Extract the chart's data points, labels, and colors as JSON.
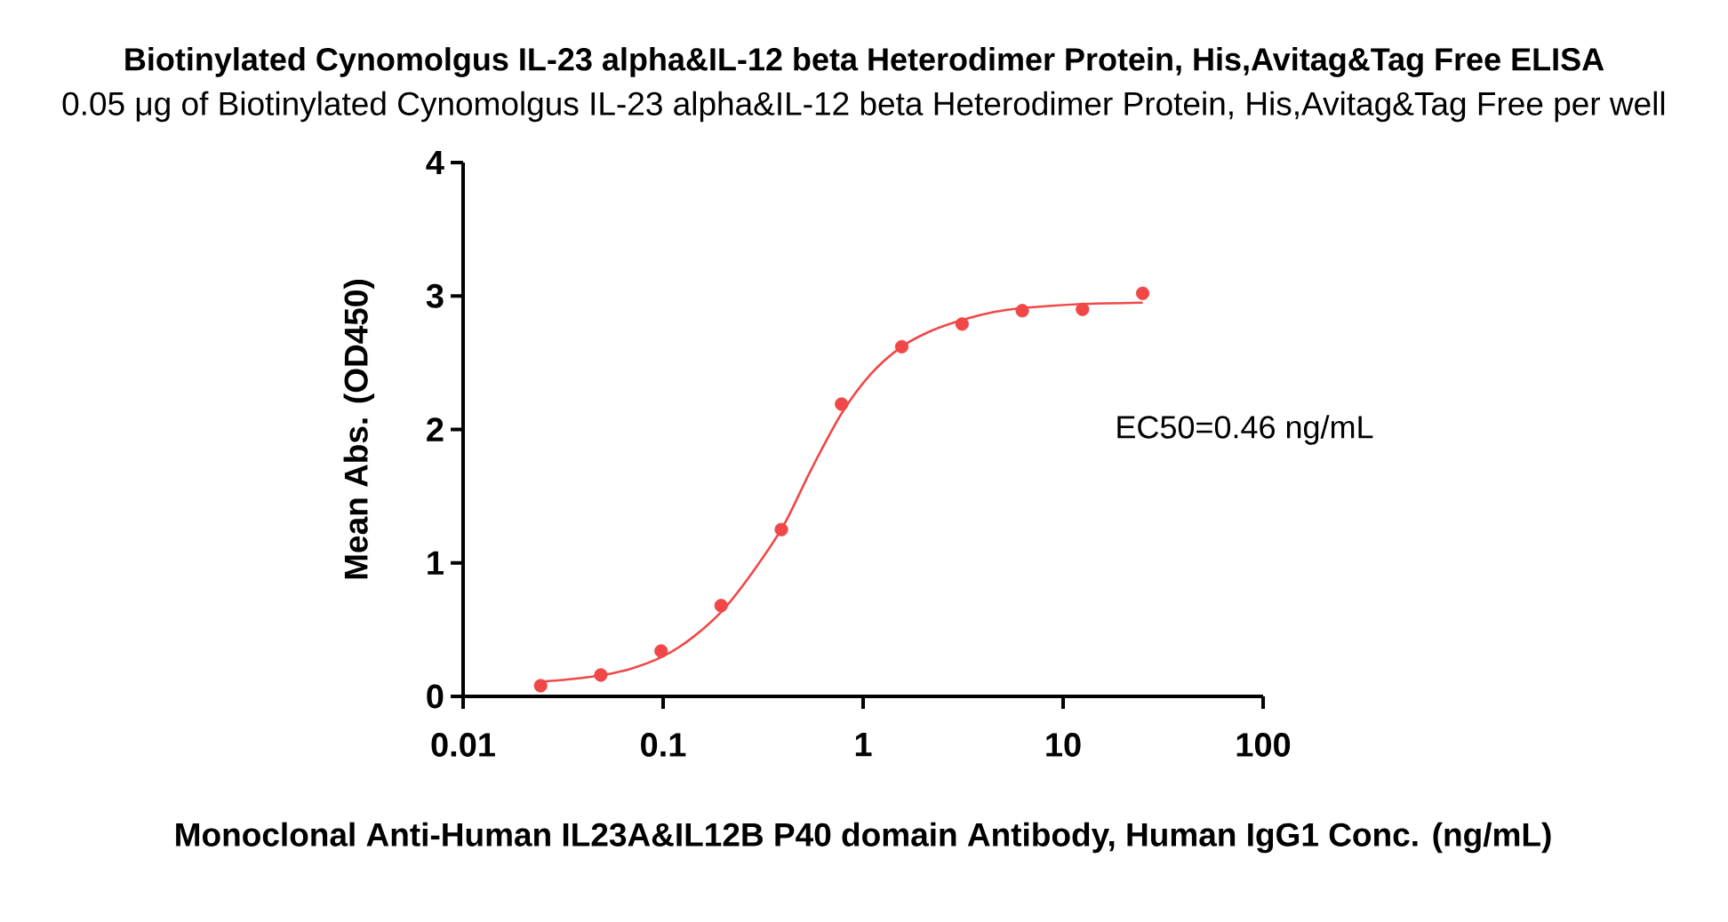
{
  "chart_data": {
    "type": "scatter",
    "title": "Biotinylated Cynomolgus IL-23 alpha&IL-12 beta Heterodimer Protein, His,Avitag&Tag Free ELISA",
    "subtitle": "0.05 μg of Biotinylated Cynomolgus IL-23 alpha&IL-12 beta Heterodimer Protein, His,Avitag&Tag Free per well",
    "xlabel": "Monoclonal Anti-Human IL23A&IL12B P40 domain Antibody, Human IgG1 Conc. (ng/mL)",
    "ylabel": "Mean Abs. (OD450)",
    "annotations": [
      "EC50=0.46 ng/mL"
    ],
    "log": "x",
    "xlim": [
      0.01,
      100
    ],
    "ylim": [
      0,
      4
    ],
    "xticks": [
      0.01,
      0.1,
      1,
      10,
      100
    ],
    "yticks": [
      0,
      1,
      2,
      3,
      4
    ],
    "series": [
      {
        "color": "#f04848",
        "marker": "circle",
        "x": [
          0.0244,
          0.0488,
          0.0977,
          0.195,
          0.39,
          0.78,
          1.56,
          3.125,
          6.25,
          12.5,
          25
        ],
        "values": [
          0.08,
          0.16,
          0.34,
          0.68,
          1.25,
          2.19,
          2.62,
          2.79,
          2.89,
          2.9,
          3.02
        ]
      },
      {
        "type": "line",
        "color": "#f04848",
        "marker": "none",
        "line_style": "solid",
        "x": [
          0.0244,
          0.035,
          0.05,
          0.07,
          0.1,
          0.14,
          0.2,
          0.28,
          0.4,
          0.55,
          0.78,
          1.1,
          1.56,
          2.2,
          3.125,
          4.5,
          6.25,
          12.5,
          25
        ],
        "values": [
          0.11,
          0.13,
          0.16,
          0.21,
          0.3,
          0.44,
          0.65,
          0.93,
          1.28,
          1.7,
          2.12,
          2.42,
          2.62,
          2.74,
          2.82,
          2.88,
          2.91,
          2.94,
          2.95
        ]
      }
    ]
  }
}
